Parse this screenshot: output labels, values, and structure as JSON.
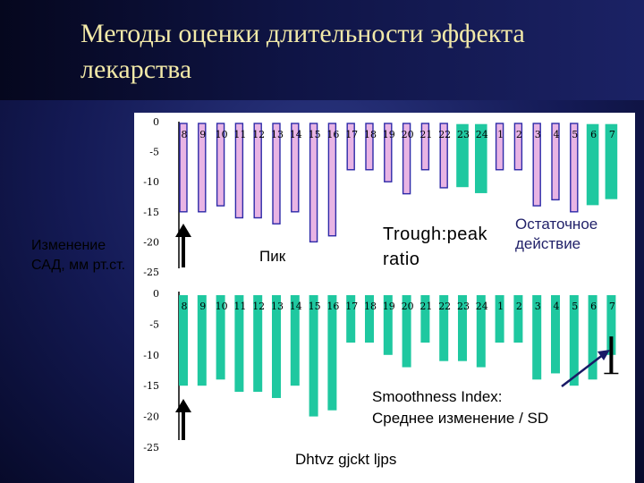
{
  "slide": {
    "title": "Методы оценки длительности эффекта лекарства",
    "ylabel": "Изменение САД, мм рт.ст.",
    "peak_label": "Пик",
    "trough_label": "Trough:peak ratio",
    "residual_label": "Остаточное действие",
    "smooth_label_line1": "Smoothness Index:",
    "smooth_label_line2": "Среднее изменение / SD",
    "bottom_text": "Dhtvz gjckt ljps",
    "colors": {
      "pink_bar": "#e8b4e4",
      "pink_edge": "#2d2aa8",
      "green_bar": "#1fc8a0",
      "title": "#f2e9a8"
    }
  },
  "chart_data": [
    {
      "type": "bar",
      "categories": [
        "8",
        "9",
        "10",
        "11",
        "12",
        "13",
        "14",
        "15",
        "16",
        "17",
        "18",
        "19",
        "20",
        "21",
        "22",
        "23",
        "24",
        "1",
        "2",
        "3",
        "4",
        "5",
        "6",
        "7"
      ],
      "y_ticks": [
        "0",
        "-5",
        "-10",
        "-15",
        "-20",
        "-25"
      ],
      "ylim": [
        -25,
        0
      ],
      "values": [
        -15,
        -15,
        -14,
        -16,
        -16,
        -17,
        -15,
        -20,
        -19,
        -8,
        -8,
        -10,
        -12,
        -8,
        -11,
        -11,
        -12,
        -8,
        -8,
        -14,
        -13,
        -15,
        -14,
        -13
      ],
      "highlight_indices": [
        15,
        16,
        22,
        23
      ],
      "grid": false
    },
    {
      "type": "bar",
      "categories": [
        "8",
        "9",
        "10",
        "11",
        "12",
        "13",
        "14",
        "15",
        "16",
        "17",
        "18",
        "19",
        "20",
        "21",
        "22",
        "23",
        "24",
        "1",
        "2",
        "3",
        "4",
        "5",
        "6",
        "7"
      ],
      "y_ticks": [
        "0",
        "-5",
        "-10",
        "-15",
        "-20",
        "-25"
      ],
      "ylim": [
        -25,
        0
      ],
      "values": [
        -15,
        -15,
        -14,
        -16,
        -16,
        -17,
        -15,
        -20,
        -19,
        -8,
        -8,
        -10,
        -12,
        -8,
        -11,
        -11,
        -12,
        -8,
        -8,
        -14,
        -13,
        -15,
        -14,
        -10
      ],
      "error_bar": {
        "category": "7",
        "low": -13,
        "high": -7
      },
      "grid": false
    }
  ]
}
